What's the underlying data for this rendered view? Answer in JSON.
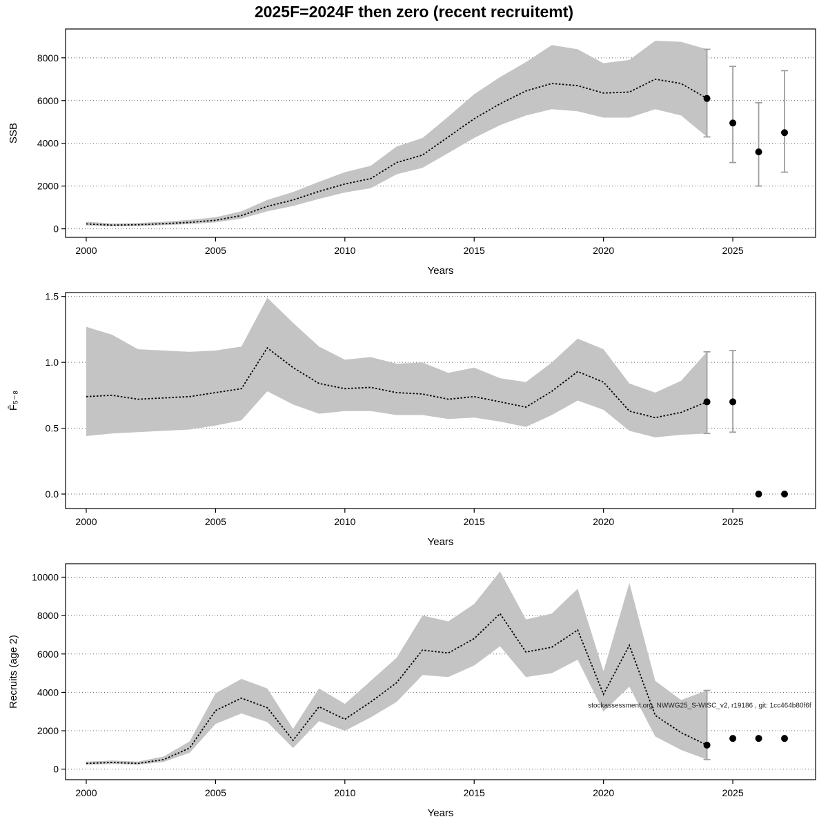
{
  "page": {
    "title": "2025F=2024F then zero (recent recruitemt)",
    "watermark": "stockassessment.org, NWWG25_S-WISC_v2, r19186 , git: 1cc464b80f6f"
  },
  "colors": {
    "band": "#c4c4c4",
    "line": "#000000",
    "errorbar": "#9f9f9f",
    "grid": "#606060"
  },
  "chart_data": [
    {
      "type": "area",
      "title": "",
      "xlabel": "Years",
      "ylabel": "SSB",
      "xlim": [
        1999.2,
        2028.2
      ],
      "ylim": [
        -400,
        9350
      ],
      "xticks": [
        2000,
        2005,
        2010,
        2015,
        2020,
        2025
      ],
      "xtick_labels": [
        "2000",
        "2005",
        "2010",
        "2015",
        "2020",
        "2025"
      ],
      "yticks": [
        0,
        2000,
        4000,
        6000,
        8000
      ],
      "ytick_labels": [
        "0",
        "2000",
        "4000",
        "6000",
        "8000"
      ],
      "x": [
        2000,
        2001,
        2002,
        2003,
        2004,
        2005,
        2006,
        2007,
        2008,
        2009,
        2010,
        2011,
        2012,
        2013,
        2014,
        2015,
        2016,
        2017,
        2018,
        2019,
        2020,
        2021,
        2022,
        2023,
        2024
      ],
      "line": [
        230,
        170,
        190,
        240,
        300,
        400,
        620,
        1050,
        1350,
        1750,
        2100,
        2350,
        3100,
        3450,
        4300,
        5150,
        5850,
        6450,
        6800,
        6700,
        6350,
        6400,
        7000,
        6800,
        6100
      ],
      "band_lower": [
        160,
        120,
        130,
        170,
        220,
        300,
        480,
        820,
        1070,
        1400,
        1700,
        1900,
        2550,
        2850,
        3550,
        4250,
        4850,
        5300,
        5600,
        5500,
        5200,
        5200,
        5600,
        5300,
        4300
      ],
      "band_upper": [
        330,
        250,
        270,
        330,
        420,
        540,
        820,
        1350,
        1720,
        2200,
        2650,
        2950,
        3850,
        4250,
        5250,
        6300,
        7100,
        7800,
        8600,
        8400,
        7750,
        7900,
        8800,
        8750,
        8400
      ],
      "points": [
        {
          "x": 2024,
          "y": 6100,
          "lo": 4300,
          "hi": 8400
        },
        {
          "x": 2025,
          "y": 4950,
          "lo": 3100,
          "hi": 7600
        },
        {
          "x": 2026,
          "y": 3600,
          "lo": 2000,
          "hi": 5900
        },
        {
          "x": 2027,
          "y": 4500,
          "lo": 2650,
          "hi": 7400
        }
      ]
    },
    {
      "type": "area",
      "title": "",
      "xlabel": "Years",
      "ylabel": "F̄₅₋₈",
      "xlim": [
        1999.2,
        2028.2
      ],
      "ylim": [
        -0.11,
        1.53
      ],
      "xticks": [
        2000,
        2005,
        2010,
        2015,
        2020,
        2025
      ],
      "xtick_labels": [
        "2000",
        "2005",
        "2010",
        "2015",
        "2020",
        "2025"
      ],
      "yticks": [
        0,
        0.5,
        1,
        1.5
      ],
      "ytick_labels": [
        "0.0",
        "0.5",
        "1.0",
        "1.5"
      ],
      "x": [
        2000,
        2001,
        2002,
        2003,
        2004,
        2005,
        2006,
        2007,
        2008,
        2009,
        2010,
        2011,
        2012,
        2013,
        2014,
        2015,
        2016,
        2017,
        2018,
        2019,
        2020,
        2021,
        2022,
        2023,
        2024
      ],
      "line": [
        0.74,
        0.75,
        0.72,
        0.73,
        0.74,
        0.77,
        0.8,
        1.11,
        0.96,
        0.84,
        0.8,
        0.81,
        0.77,
        0.76,
        0.72,
        0.74,
        0.7,
        0.66,
        0.78,
        0.93,
        0.85,
        0.63,
        0.58,
        0.62,
        0.7
      ],
      "band_lower": [
        0.44,
        0.46,
        0.47,
        0.48,
        0.49,
        0.52,
        0.56,
        0.78,
        0.68,
        0.61,
        0.63,
        0.63,
        0.6,
        0.6,
        0.57,
        0.58,
        0.55,
        0.51,
        0.6,
        0.71,
        0.64,
        0.48,
        0.43,
        0.45,
        0.46
      ],
      "band_upper": [
        1.27,
        1.21,
        1.1,
        1.09,
        1.08,
        1.09,
        1.12,
        1.49,
        1.3,
        1.12,
        1.02,
        1.04,
        0.99,
        1.0,
        0.92,
        0.96,
        0.88,
        0.85,
        1.0,
        1.18,
        1.1,
        0.84,
        0.77,
        0.86,
        1.08
      ],
      "points": [
        {
          "x": 2024,
          "y": 0.7,
          "lo": 0.46,
          "hi": 1.08
        },
        {
          "x": 2025,
          "y": 0.7,
          "lo": 0.47,
          "hi": 1.09
        },
        {
          "x": 2026,
          "y": 0.0
        },
        {
          "x": 2027,
          "y": 0.0
        }
      ]
    },
    {
      "type": "area",
      "title": "",
      "xlabel": "Years",
      "ylabel": "Recruits (age 2)",
      "xlim": [
        1999.2,
        2028.2
      ],
      "ylim": [
        -550,
        10700
      ],
      "xticks": [
        2000,
        2005,
        2010,
        2015,
        2020,
        2025
      ],
      "xtick_labels": [
        "2000",
        "2005",
        "2010",
        "2015",
        "2020",
        "2025"
      ],
      "yticks": [
        0,
        2000,
        4000,
        6000,
        8000,
        10000
      ],
      "ytick_labels": [
        "0",
        "2000",
        "4000",
        "6000",
        "8000",
        "10000"
      ],
      "x": [
        2000,
        2001,
        2002,
        2003,
        2004,
        2005,
        2006,
        2007,
        2008,
        2009,
        2010,
        2011,
        2012,
        2013,
        2014,
        2015,
        2016,
        2017,
        2018,
        2019,
        2020,
        2021,
        2022,
        2023,
        2024
      ],
      "line": [
        300,
        350,
        300,
        500,
        1100,
        3050,
        3700,
        3200,
        1500,
        3250,
        2600,
        3500,
        4500,
        6200,
        6050,
        6800,
        8100,
        6100,
        6350,
        7250,
        3900,
        6450,
        2800,
        1900,
        1250
      ],
      "band_lower": [
        230,
        270,
        230,
        380,
        850,
        2350,
        2900,
        2450,
        1100,
        2500,
        2000,
        2700,
        3500,
        4900,
        4800,
        5400,
        6400,
        4800,
        5000,
        5700,
        3000,
        4300,
        1700,
        1000,
        500
      ],
      "band_upper": [
        390,
        450,
        390,
        660,
        1450,
        3950,
        4700,
        4200,
        2100,
        4200,
        3400,
        4600,
        5800,
        8000,
        7700,
        8600,
        10300,
        7800,
        8100,
        9400,
        5100,
        9700,
        4600,
        3600,
        4100
      ],
      "points": [
        {
          "x": 2024,
          "y": 1250,
          "lo": 500,
          "hi": 4100
        },
        {
          "x": 2025,
          "y": 1600
        },
        {
          "x": 2026,
          "y": 1600
        },
        {
          "x": 2027,
          "y": 1600
        }
      ],
      "annotation": {
        "x": 2019.4,
        "y": 3200
      }
    }
  ]
}
